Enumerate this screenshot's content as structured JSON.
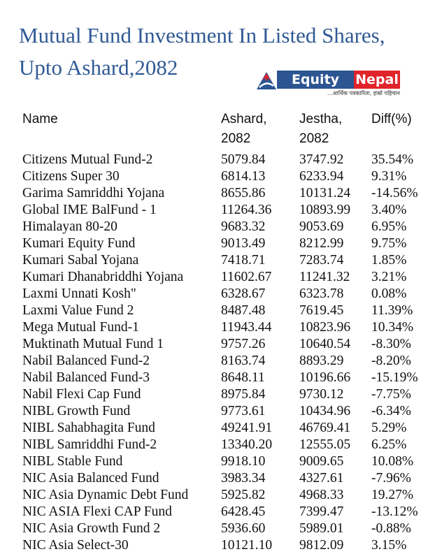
{
  "title": "Mutual Fund Investment In Listed Shares, Upto Ashard,2082",
  "logo": {
    "brand_left": "Equity",
    "brand_right": "Nepal",
    "tagline": "...आर्थिक पत्रकारिता, हाम्रो पहिचान",
    "colors": {
      "blue": "#2c5592",
      "red": "#e0242a"
    }
  },
  "table": {
    "headers": {
      "name": "Name",
      "ashard_line1": "Ashard,",
      "ashard_line2": "2082",
      "jestha_line1": "Jestha,",
      "jestha_line2": "2082",
      "diff": "Diff(%)"
    },
    "rows": [
      [
        "Citizens Mutual Fund-2",
        "5079.84",
        "3747.92",
        "35.54%"
      ],
      [
        "Citizens Super 30",
        "6814.13",
        "6233.94",
        "9.31%"
      ],
      [
        "Garima Samriddhi Yojana",
        "8655.86",
        "10131.24",
        "-14.56%"
      ],
      [
        "Global IME BalFund - 1",
        "11264.36",
        "10893.99",
        "3.40%"
      ],
      [
        "Himalayan 80-20",
        "9683.32",
        "9053.69",
        "6.95%"
      ],
      [
        "Kumari Equity Fund",
        "9013.49",
        "8212.99",
        "9.75%"
      ],
      [
        "Kumari Sabal Yojana",
        "7418.71",
        "7283.74",
        "1.85%"
      ],
      [
        "Kumari Dhanabriddhi Yojana",
        "11602.67",
        "11241.32",
        "3.21%"
      ],
      [
        "Laxmi Unnati Kosh\"",
        "6328.67",
        "6323.78",
        "0.08%"
      ],
      [
        "Laxmi Value Fund 2",
        "8487.48",
        "7619.45",
        "11.39%"
      ],
      [
        "Mega Mutual Fund-1",
        "11943.44",
        "10823.96",
        "10.34%"
      ],
      [
        "Muktinath Mutual Fund 1",
        "9757.26",
        "10640.54",
        "-8.30%"
      ],
      [
        "Nabil Balanced Fund-2",
        "8163.74",
        "8893.29",
        "-8.20%"
      ],
      [
        "Nabil Balanced Fund-3",
        "8648.11",
        "10196.66",
        "-15.19%"
      ],
      [
        "Nabil Flexi Cap Fund",
        "8975.84",
        "9730.12",
        "-7.75%"
      ],
      [
        "NIBL Growth Fund",
        "9773.61",
        "10434.96",
        "-6.34%"
      ],
      [
        "NIBL Sahabhagita Fund",
        "49241.91",
        "46769.41",
        "5.29%"
      ],
      [
        "NIBL Samriddhi Fund-2",
        "13340.20",
        "12555.05",
        "6.25%"
      ],
      [
        "NIBL Stable Fund",
        "9918.10",
        "9009.65",
        "10.08%"
      ],
      [
        "NIC Asia Balanced Fund",
        "3983.34",
        "4327.61",
        "-7.96%"
      ],
      [
        "NIC Asia Dynamic Debt Fund",
        "5925.82",
        "4968.33",
        "19.27%"
      ],
      [
        "NIC ASIA Flexi CAP Fund",
        "6428.45",
        "7399.47",
        "-13.12%"
      ],
      [
        "NIC Asia Growth Fund 2",
        "5936.60",
        "5989.01",
        "-0.88%"
      ],
      [
        "NIC Asia Select-30",
        "10121.10",
        "9812.09",
        "3.15%"
      ]
    ]
  }
}
